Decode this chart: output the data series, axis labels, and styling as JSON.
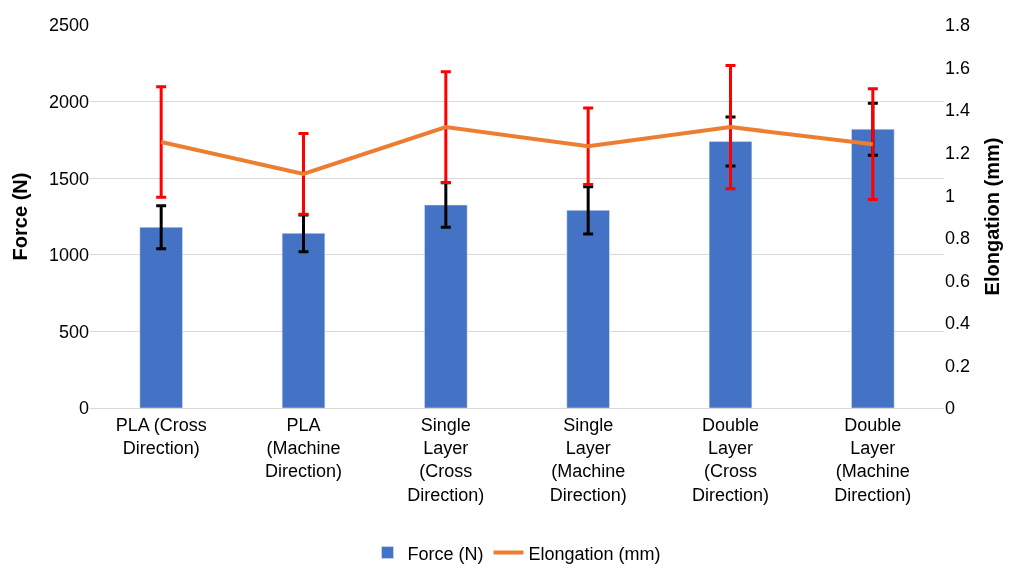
{
  "chart_data": {
    "type": "bar",
    "ylabel": "Force (N)",
    "y2label": "Elongation (mm)",
    "categories": [
      "PLA (Cross Direction)",
      "PLA (Machine Direction)",
      "Single Layer (Cross Direction)",
      "Single Layer (Machine Direction)",
      "Double Layer (Cross Direction)",
      "Double Layer (Machine Direction)"
    ],
    "series": [
      {
        "name": "Force (N)",
        "color": "#4472c4",
        "values": [
          1180,
          1140,
          1325,
          1290,
          1740,
          1820
        ],
        "errors": [
          140,
          120,
          145,
          155,
          160,
          170
        ]
      },
      {
        "name": "Elongation (mm)",
        "type": "line",
        "axis": "y2",
        "color": "#ed7d31",
        "values": [
          1.25,
          1.1,
          1.32,
          1.23,
          1.32,
          1.24
        ],
        "errors": [
          0.26,
          0.19,
          0.26,
          0.18,
          0.29,
          0.26
        ]
      }
    ],
    "ylim": [
      0,
      2500
    ],
    "yticks": [
      0,
      500,
      1000,
      1500,
      2000,
      2500
    ],
    "y2lim": [
      0,
      1.8
    ],
    "y2ticks": [
      0,
      0.2,
      0.4,
      0.6,
      0.8,
      1,
      1.2,
      1.4,
      1.6,
      1.8
    ],
    "grid": "y",
    "legend": "bottom",
    "marker": "none"
  }
}
